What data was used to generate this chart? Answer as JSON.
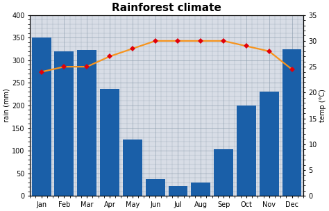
{
  "months": [
    "Jan",
    "Feb",
    "Mar",
    "Apr",
    "May",
    "Jun",
    "Jul",
    "Aug",
    "Sep",
    "Oct",
    "Nov",
    "Dec"
  ],
  "rain": [
    350,
    320,
    323,
    237,
    125,
    37,
    22,
    30,
    103,
    200,
    230,
    325
  ],
  "temp": [
    24,
    25,
    25,
    27,
    28.5,
    30,
    30,
    30,
    30,
    29,
    28,
    24.5
  ],
  "bar_color": "#1a5fa8",
  "line_color": "#f7941d",
  "marker_color": "#e0000a",
  "title": "Rainforest climate",
  "ylabel_left": "rain (mm)",
  "ylabel_right": "temp (°C)",
  "ylim_left": [
    0,
    400
  ],
  "ylim_right": [
    0,
    35
  ],
  "yticks_left": [
    0,
    50,
    100,
    150,
    200,
    250,
    300,
    350,
    400
  ],
  "yticks_right": [
    0,
    5,
    10,
    15,
    20,
    25,
    30,
    35
  ],
  "background_color": "#d8dde6",
  "grid_color": "#8899aa",
  "title_fontsize": 11,
  "label_fontsize": 7,
  "tick_fontsize": 7
}
